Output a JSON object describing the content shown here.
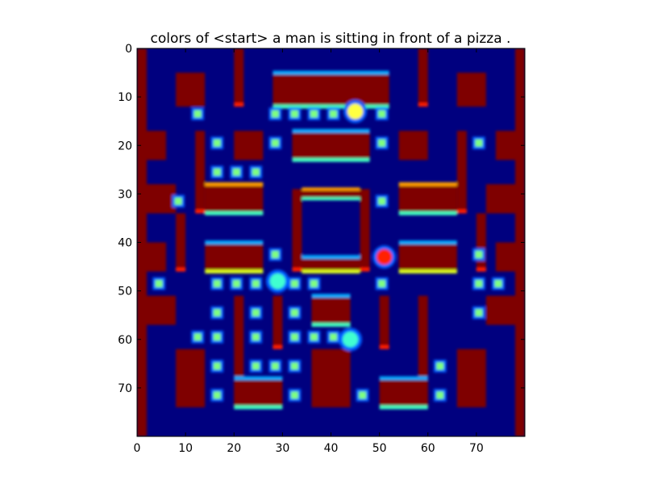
{
  "chart_data": {
    "type": "heatmap",
    "title": "colors of <start> a man is sitting in front of a pizza .",
    "xlabel": "",
    "ylabel": "",
    "xlim": [
      0,
      80
    ],
    "ylim": [
      80,
      0
    ],
    "x_ticks": [
      "0",
      "10",
      "20",
      "30",
      "40",
      "50",
      "60",
      "70"
    ],
    "y_ticks": [
      "0",
      "10",
      "20",
      "30",
      "40",
      "50",
      "60",
      "70"
    ],
    "colormap": "jet",
    "grid": false,
    "colors": {
      "background": "#00007f",
      "wall": "#7f0000",
      "wall_edge_top": "#00aaff",
      "wall_edge_bottom": "#3fffbf",
      "wall_edge_orange": "#ff9f00",
      "wall_edge_yellow": "#dfff1f",
      "red_edge": "#ff1f00",
      "pellet": "#7fff7f",
      "pellet_halo": "#0060ff",
      "sprite_yellow": "#ffff40",
      "sprite_cyan": "#40ffd0",
      "sprite_red": "#ff2000"
    },
    "walls": [
      {
        "x": 0,
        "y": 0,
        "w": 2,
        "h": 80
      },
      {
        "x": 78,
        "y": 0,
        "w": 2,
        "h": 80
      },
      {
        "x": 2,
        "y": 17,
        "w": 4,
        "h": 6
      },
      {
        "x": 74,
        "y": 17,
        "w": 4,
        "h": 6
      },
      {
        "x": 2,
        "y": 28,
        "w": 6,
        "h": 6
      },
      {
        "x": 72,
        "y": 28,
        "w": 6,
        "h": 6
      },
      {
        "x": 2,
        "y": 40,
        "w": 4,
        "h": 6
      },
      {
        "x": 74,
        "y": 40,
        "w": 4,
        "h": 6
      },
      {
        "x": 2,
        "y": 51,
        "w": 6,
        "h": 6
      },
      {
        "x": 72,
        "y": 51,
        "w": 6,
        "h": 6
      },
      {
        "x": 8,
        "y": 34,
        "w": 2,
        "h": 12
      },
      {
        "x": 70,
        "y": 34,
        "w": 2,
        "h": 12
      },
      {
        "x": 8,
        "y": 5,
        "w": 6,
        "h": 7
      },
      {
        "x": 66,
        "y": 5,
        "w": 6,
        "h": 7
      },
      {
        "x": 20,
        "y": 0,
        "w": 2,
        "h": 12
      },
      {
        "x": 58,
        "y": 0,
        "w": 2,
        "h": 12
      },
      {
        "x": 28,
        "y": 5,
        "w": 24,
        "h": 7
      },
      {
        "x": 20,
        "y": 17,
        "w": 6,
        "h": 6
      },
      {
        "x": 54,
        "y": 17,
        "w": 6,
        "h": 6
      },
      {
        "x": 12,
        "y": 17,
        "w": 2,
        "h": 17
      },
      {
        "x": 66,
        "y": 17,
        "w": 2,
        "h": 17
      },
      {
        "x": 32,
        "y": 17,
        "w": 16,
        "h": 6
      },
      {
        "x": 14,
        "y": 28,
        "w": 12,
        "h": 6
      },
      {
        "x": 54,
        "y": 28,
        "w": 12,
        "h": 6
      },
      {
        "x": 32,
        "y": 29,
        "w": 2,
        "h": 17
      },
      {
        "x": 46,
        "y": 29,
        "w": 2,
        "h": 17
      },
      {
        "x": 34,
        "y": 29,
        "w": 12,
        "h": 2
      },
      {
        "x": 34,
        "y": 43,
        "w": 12,
        "h": 3
      },
      {
        "x": 14,
        "y": 40,
        "w": 12,
        "h": 6
      },
      {
        "x": 54,
        "y": 40,
        "w": 12,
        "h": 6
      },
      {
        "x": 20,
        "y": 51,
        "w": 2,
        "h": 23
      },
      {
        "x": 58,
        "y": 51,
        "w": 2,
        "h": 23
      },
      {
        "x": 28,
        "y": 51,
        "w": 2,
        "h": 11
      },
      {
        "x": 50,
        "y": 51,
        "w": 2,
        "h": 11
      },
      {
        "x": 36,
        "y": 51,
        "w": 8,
        "h": 6
      },
      {
        "x": 8,
        "y": 62,
        "w": 6,
        "h": 12
      },
      {
        "x": 66,
        "y": 62,
        "w": 6,
        "h": 12
      },
      {
        "x": 20,
        "y": 68,
        "w": 10,
        "h": 6
      },
      {
        "x": 36,
        "y": 62,
        "w": 8,
        "h": 12
      },
      {
        "x": 50,
        "y": 68,
        "w": 10,
        "h": 6
      }
    ],
    "pellets": [
      [
        12,
        13
      ],
      [
        28,
        13
      ],
      [
        32,
        13
      ],
      [
        36,
        13
      ],
      [
        40,
        13
      ],
      [
        50,
        13
      ],
      [
        16,
        19
      ],
      [
        28,
        19
      ],
      [
        50,
        19
      ],
      [
        70,
        19
      ],
      [
        16,
        25
      ],
      [
        20,
        25
      ],
      [
        24,
        25
      ],
      [
        8,
        31
      ],
      [
        50,
        31
      ],
      [
        28,
        42
      ],
      [
        70,
        42
      ],
      [
        4,
        48
      ],
      [
        16,
        48
      ],
      [
        20,
        48
      ],
      [
        24,
        48
      ],
      [
        32,
        48
      ],
      [
        36,
        48
      ],
      [
        50,
        48
      ],
      [
        70,
        48
      ],
      [
        74,
        48
      ],
      [
        16,
        54
      ],
      [
        24,
        54
      ],
      [
        32,
        54
      ],
      [
        70,
        54
      ],
      [
        12,
        59
      ],
      [
        16,
        59
      ],
      [
        24,
        59
      ],
      [
        32,
        59
      ],
      [
        36,
        59
      ],
      [
        40,
        59
      ],
      [
        16,
        65
      ],
      [
        24,
        65
      ],
      [
        28,
        65
      ],
      [
        32,
        65
      ],
      [
        62,
        65
      ],
      [
        16,
        71
      ],
      [
        32,
        71
      ],
      [
        46,
        71
      ],
      [
        62,
        71
      ]
    ],
    "sprites": [
      {
        "x": 45,
        "y": 13,
        "color": "#ffff40"
      },
      {
        "x": 29,
        "y": 48,
        "color": "#40ffd0"
      },
      {
        "x": 51,
        "y": 43,
        "color": "#ff2000"
      },
      {
        "x": 44,
        "y": 60,
        "color": "#40ffd0"
      }
    ]
  }
}
